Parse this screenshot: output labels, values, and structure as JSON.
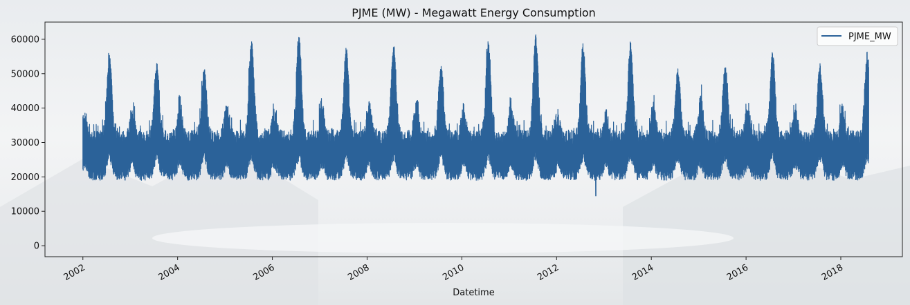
{
  "chart_data": {
    "type": "line",
    "title": "PJME (MW) - Megawatt Energy Consumption",
    "xlabel": "Datetime",
    "ylabel": "",
    "xlim": [
      2001.2,
      2019.3
    ],
    "ylim": [
      -3200,
      65000
    ],
    "x_ticks": [
      {
        "value": 2002,
        "label": "2002"
      },
      {
        "value": 2004,
        "label": "2004"
      },
      {
        "value": 2006,
        "label": "2006"
      },
      {
        "value": 2008,
        "label": "2008"
      },
      {
        "value": 2010,
        "label": "2010"
      },
      {
        "value": 2012,
        "label": "2012"
      },
      {
        "value": 2014,
        "label": "2014"
      },
      {
        "value": 2016,
        "label": "2016"
      },
      {
        "value": 2018,
        "label": "2018"
      }
    ],
    "y_ticks": [
      {
        "value": 0,
        "label": "0"
      },
      {
        "value": 10000,
        "label": "10000"
      },
      {
        "value": 20000,
        "label": "20000"
      },
      {
        "value": 30000,
        "label": "30000"
      },
      {
        "value": 40000,
        "label": "40000"
      },
      {
        "value": 50000,
        "label": "50000"
      },
      {
        "value": 60000,
        "label": "60000"
      }
    ],
    "grid": false,
    "legend": {
      "position": "top-right"
    },
    "series": [
      {
        "name": "PJME_MW",
        "color": "#2b6299",
        "time_range": [
          "2002-01-01",
          "2018-08-03"
        ],
        "summer_peaks": [
          {
            "year": 2002,
            "peak": 55900
          },
          {
            "year": 2003,
            "peak": 53800
          },
          {
            "year": 2004,
            "peak": 51700
          },
          {
            "year": 2005,
            "peak": 59800
          },
          {
            "year": 2006,
            "peak": 62000
          },
          {
            "year": 2007,
            "peak": 57800
          },
          {
            "year": 2008,
            "peak": 59200
          },
          {
            "year": 2009,
            "peak": 53000
          },
          {
            "year": 2010,
            "peak": 59900
          },
          {
            "year": 2011,
            "peak": 61400
          },
          {
            "year": 2012,
            "peak": 58700
          },
          {
            "year": 2013,
            "peak": 59200
          },
          {
            "year": 2014,
            "peak": 51500
          },
          {
            "year": 2015,
            "peak": 53000
          },
          {
            "year": 2016,
            "peak": 56500
          },
          {
            "year": 2017,
            "peak": 53000
          },
          {
            "year": 2018,
            "peak": 56600
          }
        ],
        "winter_peaks": [
          {
            "year": 2002,
            "peak": 40000
          },
          {
            "year": 2003,
            "peak": 42000
          },
          {
            "year": 2004,
            "peak": 45800
          },
          {
            "year": 2005,
            "peak": 44500
          },
          {
            "year": 2006,
            "peak": 41500
          },
          {
            "year": 2007,
            "peak": 45000
          },
          {
            "year": 2008,
            "peak": 45000
          },
          {
            "year": 2009,
            "peak": 44000
          },
          {
            "year": 2010,
            "peak": 42500
          },
          {
            "year": 2011,
            "peak": 44500
          },
          {
            "year": 2012,
            "peak": 39500
          },
          {
            "year": 2013,
            "peak": 41000
          },
          {
            "year": 2014,
            "peak": 44000
          },
          {
            "year": 2015,
            "peak": 47000
          },
          {
            "year": 2016,
            "peak": 42000
          },
          {
            "year": 2017,
            "peak": 41000
          },
          {
            "year": 2018,
            "peak": 43500
          }
        ],
        "typical_min": 19500,
        "minimum": {
          "date": "2012-10-30",
          "value": 14500
        }
      }
    ]
  }
}
